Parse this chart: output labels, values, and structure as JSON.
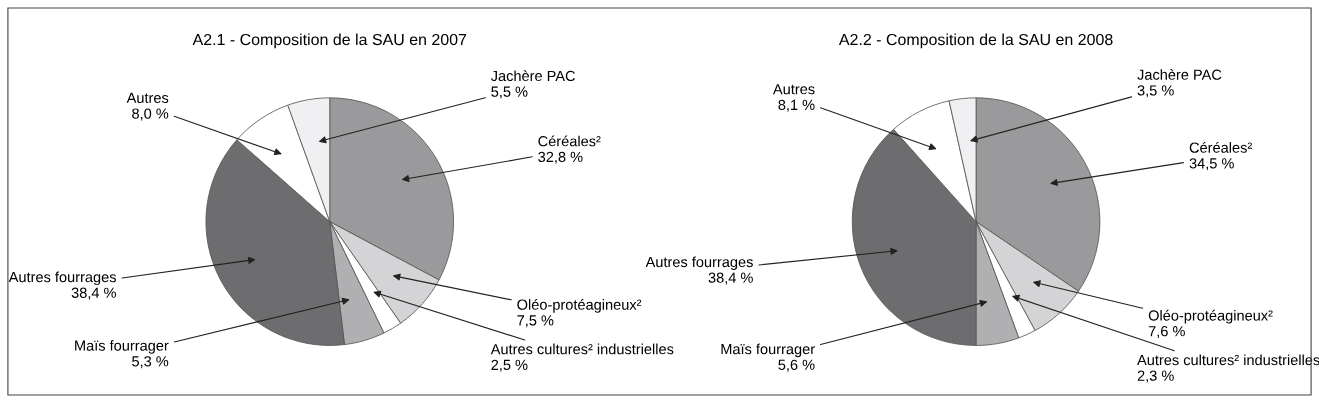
{
  "chart_data": [
    {
      "type": "pie",
      "title": "A2.1 - Composition de la SAU en 2007",
      "categories": [
        "Céréales²",
        "Oléo-protéagineux²",
        "Autres cultures² industrielles",
        "Maïs fourrager",
        "Autres fourrages",
        "Autres",
        "Jachère PAC"
      ],
      "values": [
        32.8,
        7.5,
        2.5,
        5.3,
        38.4,
        8.0,
        5.5
      ],
      "value_labels": [
        "32,8 %",
        "7,5 %",
        "2,5 %",
        "5,3 %",
        "38,4 %",
        "8,0 %",
        "5,5 %"
      ],
      "colors": [
        "#9a9a9c",
        "#d4d4d6",
        "#ffffff",
        "#b0b0b2",
        "#6d6d70",
        "#ffffff",
        "#f0f0f2"
      ]
    },
    {
      "type": "pie",
      "title": "A2.2 - Composition de la SAU en 2008",
      "categories": [
        "Céréales²",
        "Oléo-protéagineux²",
        "Autres cultures² industrielles",
        "Maïs fourrager",
        "Autres fourrages",
        "Autres",
        "Jachère PAC"
      ],
      "values": [
        34.5,
        7.6,
        2.3,
        5.6,
        38.4,
        8.1,
        3.5
      ],
      "value_labels": [
        "34,5 %",
        "7,6 %",
        "2,3 %",
        "5,6 %",
        "38,4 %",
        "8,1 %",
        "3,5 %"
      ],
      "colors": [
        "#9a9a9c",
        "#d4d4d6",
        "#ffffff",
        "#b0b0b2",
        "#6d6d70",
        "#ffffff",
        "#f0f0f2"
      ]
    }
  ]
}
